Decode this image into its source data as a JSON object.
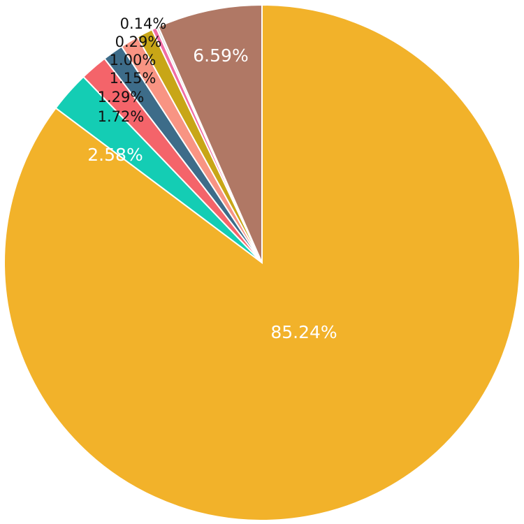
{
  "chart_data": {
    "type": "pie",
    "slices": [
      {
        "label": "85.24%",
        "value": 85.24,
        "color": "#F2B22A",
        "label_color": "#ffffff"
      },
      {
        "label": "2.58%",
        "value": 2.58,
        "color": "#14CDB4",
        "label_color": "#ffffff"
      },
      {
        "label": "1.72%",
        "value": 1.72,
        "color": "#F4646A",
        "label_color": "#111111"
      },
      {
        "label": "1.29%",
        "value": 1.29,
        "color": "#3D6C89",
        "label_color": "#111111"
      },
      {
        "label": "1.15%",
        "value": 1.15,
        "color": "#F89483",
        "label_color": "#111111"
      },
      {
        "label": "1.00%",
        "value": 1.0,
        "color": "#C8A617",
        "label_color": "#111111"
      },
      {
        "label": "0.29%",
        "value": 0.29,
        "color": "#F06CA4",
        "label_color": "#111111"
      },
      {
        "label": "0.14%",
        "value": 0.14,
        "color": "#D8D8D8",
        "label_color": "#111111"
      },
      {
        "label": "6.59%",
        "value": 6.59,
        "color": "#B07865",
        "label_color": "#ffffff"
      }
    ]
  }
}
